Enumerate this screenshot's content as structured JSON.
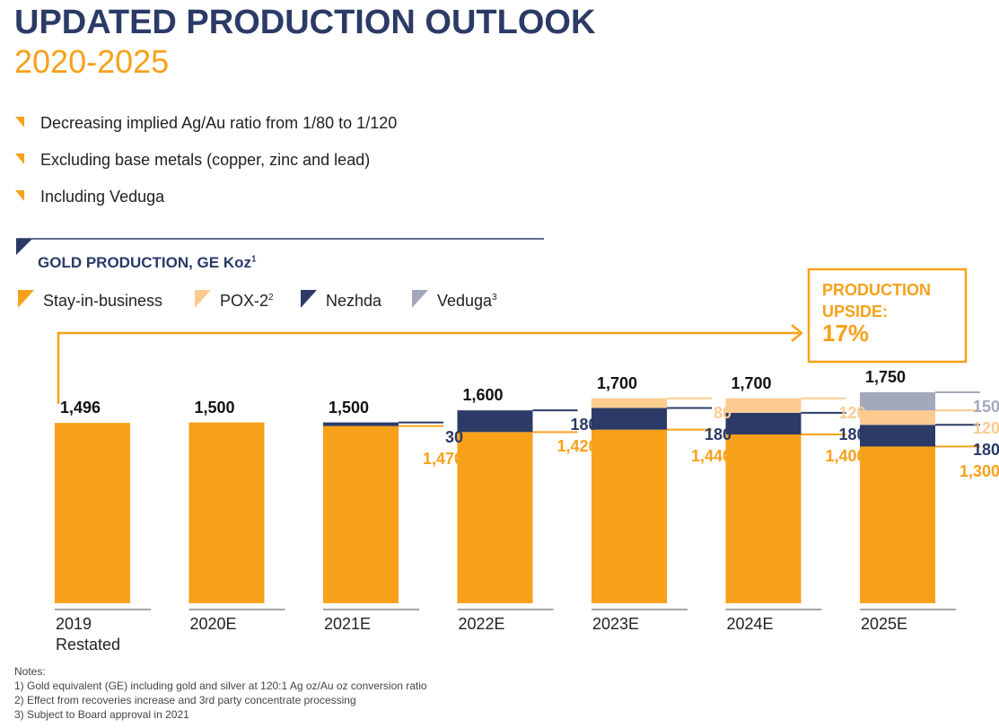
{
  "header": {
    "title": "UPDATED PRODUCTION OUTLOOK",
    "subtitle": "2020-2025"
  },
  "bullets": [
    "Decreasing implied Ag/Au ratio from 1/80 to 1/120",
    "Excluding base metals (copper, zinc and lead)",
    "Including Veduga"
  ],
  "chart_data": {
    "type": "stacked-bar",
    "title": "GOLD PRODUCTION, GE Koz",
    "title_note": "1",
    "categories": [
      "2019 Restated",
      "2020E",
      "2021E",
      "2022E",
      "2023E",
      "2024E",
      "2025E"
    ],
    "series": [
      {
        "name": "Stay-in-business",
        "color": "#f7a11a",
        "values": [
          1496,
          1500,
          1470,
          1420,
          1440,
          1400,
          1300
        ],
        "value_labels": [
          null,
          null,
          "1,470",
          "1,420",
          "1,440",
          "1,400",
          "1,300"
        ]
      },
      {
        "name": "POX-2",
        "name_note": "2",
        "color": "#fccb8f",
        "values": [
          null,
          null,
          null,
          null,
          80,
          120,
          120
        ]
      },
      {
        "name": "Nezhda",
        "color": "#2b3a67",
        "values": [
          null,
          null,
          30,
          180,
          180,
          180,
          180
        ]
      },
      {
        "name": "Veduga",
        "name_note": "3",
        "color": "#a3a9bb",
        "values": [
          null,
          null,
          null,
          null,
          null,
          null,
          150
        ]
      }
    ],
    "stack_order": [
      0,
      2,
      1,
      3
    ],
    "totals": [
      1496,
      1500,
      1500,
      1600,
      1700,
      1700,
      1750
    ],
    "total_labels": [
      "1,496",
      "1,500",
      "1,500",
      "1,600",
      "1,700",
      "1,700",
      "1,750"
    ],
    "annotation": {
      "label": "PRODUCTION UPSIDE:",
      "value": "17%"
    }
  },
  "notes": {
    "title": "Notes:",
    "items": [
      "1) Gold equivalent (GE) including gold and silver at 120:1 Ag oz/Au oz conversion ratio",
      "2) Effect from recoveries increase and 3rd party concentrate processing",
      "3) Subject to Board approval in 2021"
    ]
  }
}
